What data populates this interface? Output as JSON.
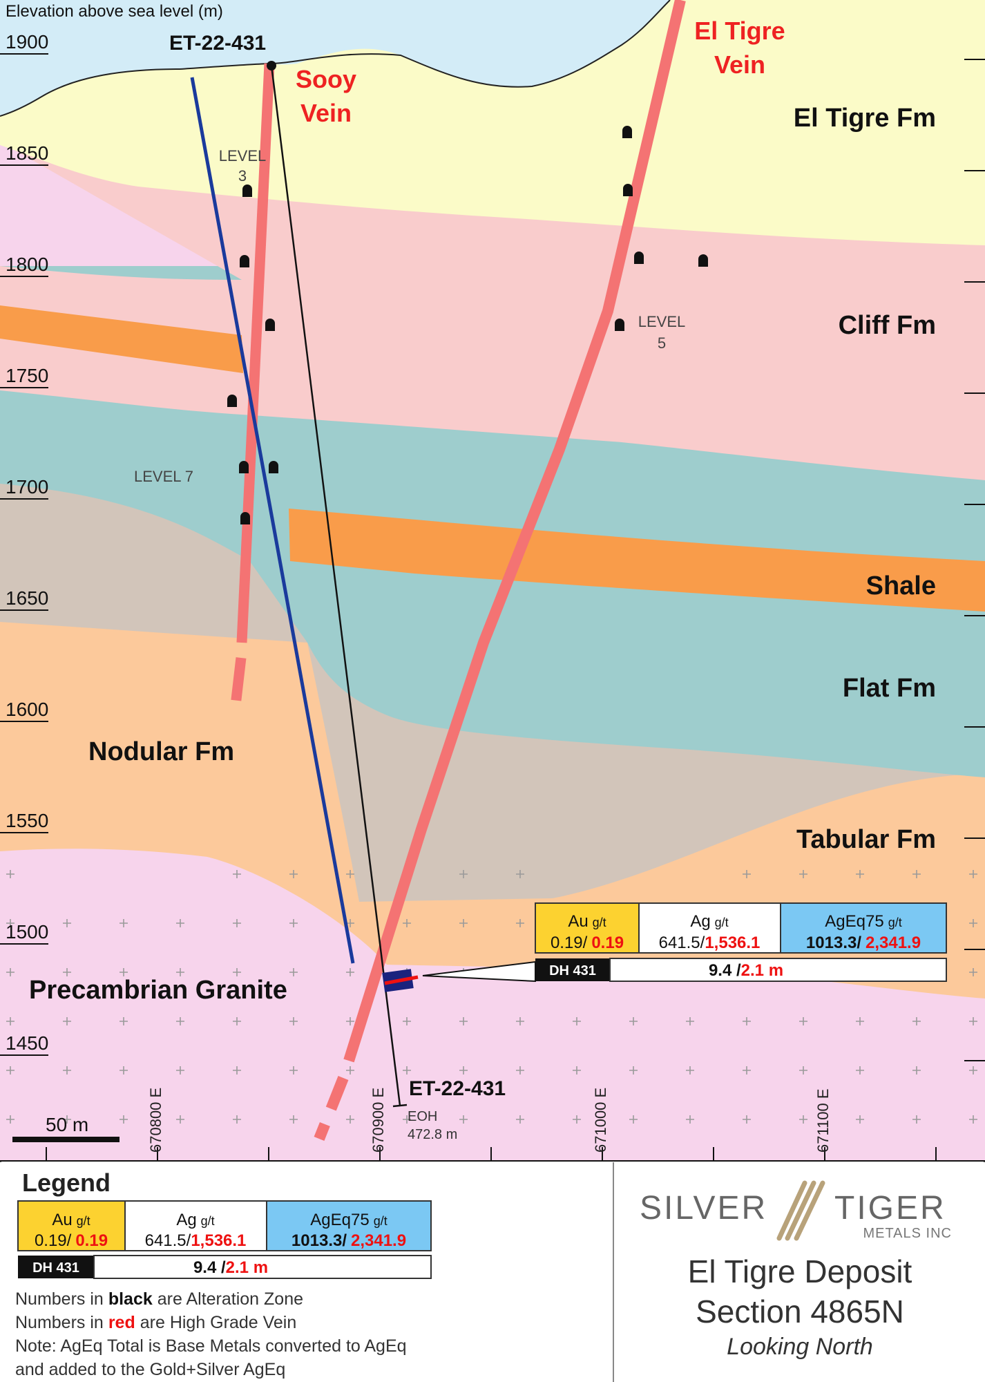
{
  "section": {
    "axis_title": "Elevation above sea level (m)",
    "elevations": [
      "1900",
      "1850",
      "1800",
      "1750",
      "1700",
      "1650",
      "1600",
      "1550",
      "1500",
      "1450"
    ],
    "eastings": [
      "670800 E",
      "670900 E",
      "671000 E",
      "671100 E"
    ],
    "scale_bar": "50 m",
    "formations": {
      "el_tigre": "El Tigre Fm",
      "cliff": "Cliff Fm",
      "shale": "Shale",
      "flat": "Flat Fm",
      "tabular": "Tabular Fm",
      "nodular": "Nodular Fm",
      "granite": "Precambrian Granite"
    },
    "veins": {
      "sooy_line1": "Sooy",
      "sooy_line2": "Vein",
      "eltigre_line1": "El Tigre",
      "eltigre_line2": "Vein"
    },
    "levels": {
      "level3_line1": "LEVEL",
      "level3_line2": "3",
      "level5_line1": "LEVEL",
      "level5_line2": "5",
      "level7": "LEVEL 7"
    },
    "drillhole": {
      "collar_label": "ET-22-431",
      "end_label": "ET-22-431",
      "eoh_line1": "EOH",
      "eoh_line2": "472.8 m"
    }
  },
  "intercept_box": {
    "au_label": "Au",
    "au_unit": "g/t",
    "au_black": "0.19/",
    "au_red": "0.19",
    "ag_label": "Ag",
    "ag_unit": "g/t",
    "ag_black": "641.5/",
    "ag_red": "1,536.1",
    "ageq_label": "AgEq75",
    "ageq_unit": "g/t",
    "ageq_black": "1013.3/",
    "ageq_red": "2,341.9",
    "dh_label": "DH 431",
    "width_black": "9.4 /",
    "width_red": "2.1 m"
  },
  "legend": {
    "title": "Legend",
    "au_label": "Au",
    "au_unit": "g/t",
    "au_black": "0.19/",
    "au_red": "0.19",
    "ag_label": "Ag",
    "ag_unit": "g/t",
    "ag_black": "641.5/",
    "ag_red": "1,536.1",
    "ageq_label": "AgEq75",
    "ageq_unit": "g/t",
    "ageq_black": "1013.3/",
    "ageq_red": "2,341.9",
    "dh_label": "DH 431",
    "width_black": "9.4 /",
    "width_red": "2.1 m",
    "note1_pre": "Numbers in",
    "note1_key": "black",
    "note1_post": "are Alteration Zone",
    "note2_pre": "Numbers in",
    "note2_key": "red",
    "note2_post": "are High Grade Vein",
    "note3": "Note: AgEq Total is Base Metals converted to AgEq",
    "note4": "and added to the Gold+Silver AgEq"
  },
  "title_block": {
    "logo_left": "SILVER",
    "logo_right": "TIGER",
    "logo_sub": "METALS INC",
    "title_line1": "El Tigre Deposit",
    "title_line2": "Section 4865N",
    "subtitle": "Looking North"
  },
  "colors": {
    "sky": "#d3ecf7",
    "el_tigre_fm": "#fbfbc8",
    "cliff_fm": "#f9cccc",
    "flat_fm": "#9ecdcd",
    "shale": "#f99c4a",
    "tabular_fm": "#d2c5ba",
    "nodular_fm": "#fcc99b",
    "granite": "#f7d4ec",
    "vein": "#f47373",
    "drill_blue": "#1a3a9c",
    "au_box": "#fcd230",
    "ageq_box": "#7bc8f3",
    "red_text": "#e11111"
  }
}
